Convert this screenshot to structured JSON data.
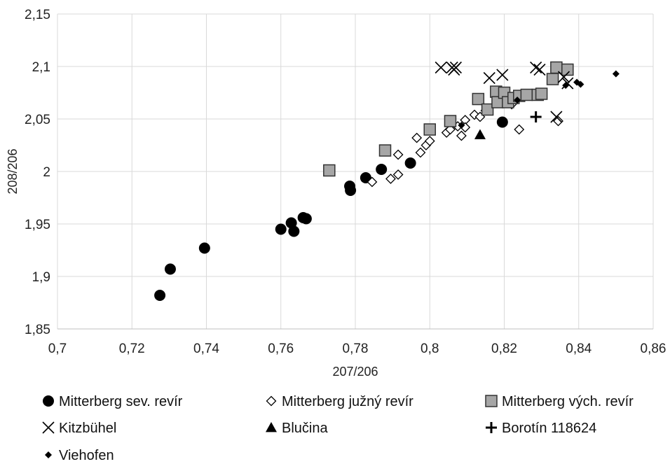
{
  "chart_data": {
    "type": "scatter",
    "title": "",
    "xlabel": "207/206",
    "ylabel": "208/206",
    "xlim": [
      0.7,
      0.86
    ],
    "ylim": [
      1.85,
      2.15
    ],
    "x_ticks": [
      0.7,
      0.72,
      0.74,
      0.76,
      0.78,
      0.8,
      0.82,
      0.84,
      0.86
    ],
    "y_ticks": [
      1.85,
      1.9,
      1.95,
      2,
      2.05,
      2.1,
      2.15
    ],
    "x_tick_labels": [
      "0,7",
      "0,72",
      "0,74",
      "0,76",
      "0,78",
      "0,8",
      "0,82",
      "0,84",
      "0,86"
    ],
    "y_tick_labels": [
      "1,85",
      "1,9",
      "1,95",
      "2",
      "2,05",
      "2,1",
      "2,15"
    ],
    "grid": "vertical and horizontal major gridlines",
    "legend_position": "bottom",
    "series": [
      {
        "name": "Mitterberg sev. revír",
        "marker": "filled-circle",
        "color": "#000000",
        "points": [
          [
            0.7275,
            1.882
          ],
          [
            0.7303,
            1.907
          ],
          [
            0.7395,
            1.927
          ],
          [
            0.76,
            1.945
          ],
          [
            0.7628,
            1.951
          ],
          [
            0.7635,
            1.943
          ],
          [
            0.766,
            1.956
          ],
          [
            0.7668,
            1.955
          ],
          [
            0.7785,
            1.986
          ],
          [
            0.7787,
            1.982
          ],
          [
            0.7828,
            1.994
          ],
          [
            0.787,
            2.002
          ],
          [
            0.7948,
            2.008
          ],
          [
            0.8195,
            2.047
          ]
        ]
      },
      {
        "name": "Mitterberg južný revír",
        "marker": "open-diamond",
        "color": "#000000",
        "points": [
          [
            0.7845,
            1.99
          ],
          [
            0.7895,
            1.993
          ],
          [
            0.7915,
            2.016
          ],
          [
            0.7915,
            1.997
          ],
          [
            0.7965,
            2.032
          ],
          [
            0.7975,
            2.018
          ],
          [
            0.799,
            2.025
          ],
          [
            0.8,
            2.029
          ],
          [
            0.8045,
            2.037
          ],
          [
            0.8055,
            2.04
          ],
          [
            0.8075,
            2.043
          ],
          [
            0.8085,
            2.034
          ],
          [
            0.8095,
            2.049
          ],
          [
            0.8095,
            2.042
          ],
          [
            0.812,
            2.054
          ],
          [
            0.8135,
            2.052
          ],
          [
            0.815,
            2.058
          ],
          [
            0.822,
            2.064
          ],
          [
            0.8235,
            2.069
          ],
          [
            0.824,
            2.04
          ],
          [
            0.8345,
            2.048
          ]
        ]
      },
      {
        "name": "Mitterberg vých. revír",
        "marker": "filled-square",
        "color": "#a6a6a6",
        "points": [
          [
            0.773,
            2.001
          ],
          [
            0.788,
            2.02
          ],
          [
            0.8,
            2.04
          ],
          [
            0.8055,
            2.048
          ],
          [
            0.813,
            2.069
          ],
          [
            0.8155,
            2.059
          ],
          [
            0.8178,
            2.076
          ],
          [
            0.8182,
            2.066
          ],
          [
            0.82,
            2.075
          ],
          [
            0.821,
            2.066
          ],
          [
            0.8225,
            2.07
          ],
          [
            0.824,
            2.072
          ],
          [
            0.826,
            2.073
          ],
          [
            0.829,
            2.073
          ],
          [
            0.83,
            2.074
          ],
          [
            0.833,
            2.088
          ],
          [
            0.834,
            2.099
          ],
          [
            0.837,
            2.097
          ]
        ]
      },
      {
        "name": "Kitzbühel",
        "marker": "x-cross",
        "color": "#000000",
        "points": [
          [
            0.803,
            2.099
          ],
          [
            0.806,
            2.099
          ],
          [
            0.807,
            2.099
          ],
          [
            0.8065,
            2.097
          ],
          [
            0.816,
            2.089
          ],
          [
            0.8195,
            2.092
          ],
          [
            0.8285,
            2.099
          ],
          [
            0.8295,
            2.097
          ],
          [
            0.834,
            2.052
          ],
          [
            0.836,
            2.09
          ],
          [
            0.837,
            2.084
          ]
        ]
      },
      {
        "name": "Blučina",
        "marker": "filled-triangle",
        "color": "#000000",
        "points": [
          [
            0.8135,
            2.035
          ]
        ]
      },
      {
        "name": "Borotín 118624",
        "marker": "plus",
        "color": "#000000",
        "points": [
          [
            0.8285,
            2.052
          ]
        ]
      },
      {
        "name": "Viehofen",
        "marker": "filled-diamond",
        "color": "#000000",
        "points": [
          [
            0.8085,
            2.044
          ],
          [
            0.8235,
            2.068
          ],
          [
            0.8365,
            2.082
          ],
          [
            0.8395,
            2.085
          ],
          [
            0.8405,
            2.083
          ],
          [
            0.85,
            2.093
          ]
        ]
      }
    ]
  }
}
